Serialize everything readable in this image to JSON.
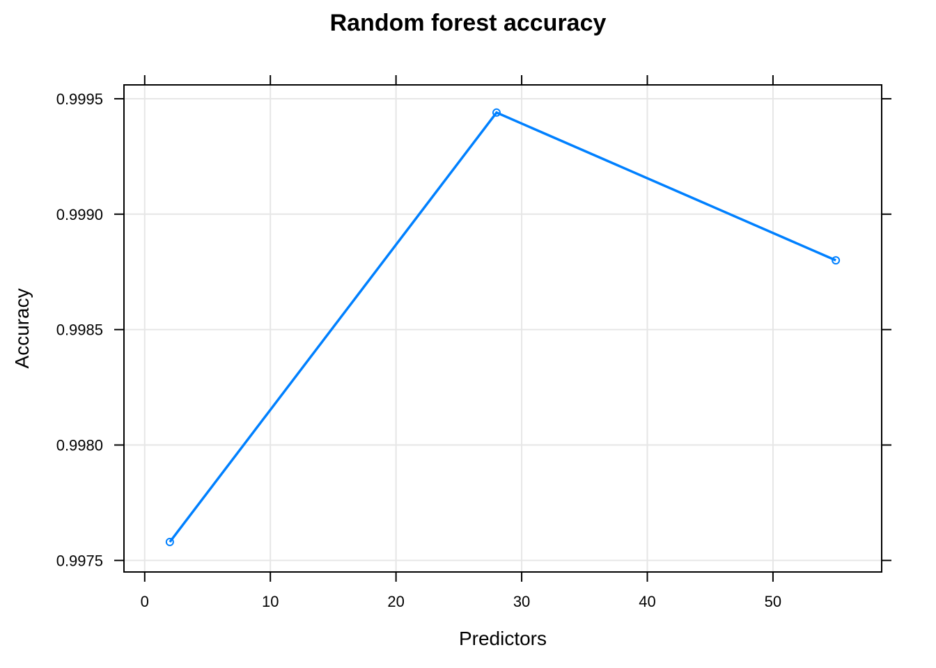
{
  "chart_data": {
    "type": "line",
    "title": "Random forest accuracy",
    "xlabel": "Predictors",
    "ylabel": "Accuracy",
    "x": [
      2,
      28,
      55
    ],
    "series": [
      {
        "values": [
          0.99758,
          0.99944,
          0.9988
        ]
      }
    ],
    "xlim": [
      -1.65,
      58.65
    ],
    "ylim": [
      0.99745,
      0.99956
    ],
    "xticks": [
      0,
      10,
      20,
      30,
      40,
      50
    ],
    "yticks": [
      0.9975,
      0.998,
      0.9985,
      0.999,
      0.9995
    ],
    "xtick_labels": [
      "0",
      "10",
      "20",
      "30",
      "40",
      "50"
    ],
    "ytick_labels": [
      "0.9975",
      "0.9980",
      "0.9985",
      "0.9990",
      "0.9995"
    ],
    "grid": true,
    "marker": "open-circle",
    "colors": {
      "series": "#0080ff",
      "grid": "#e6e6e6",
      "axis": "#000000"
    }
  }
}
